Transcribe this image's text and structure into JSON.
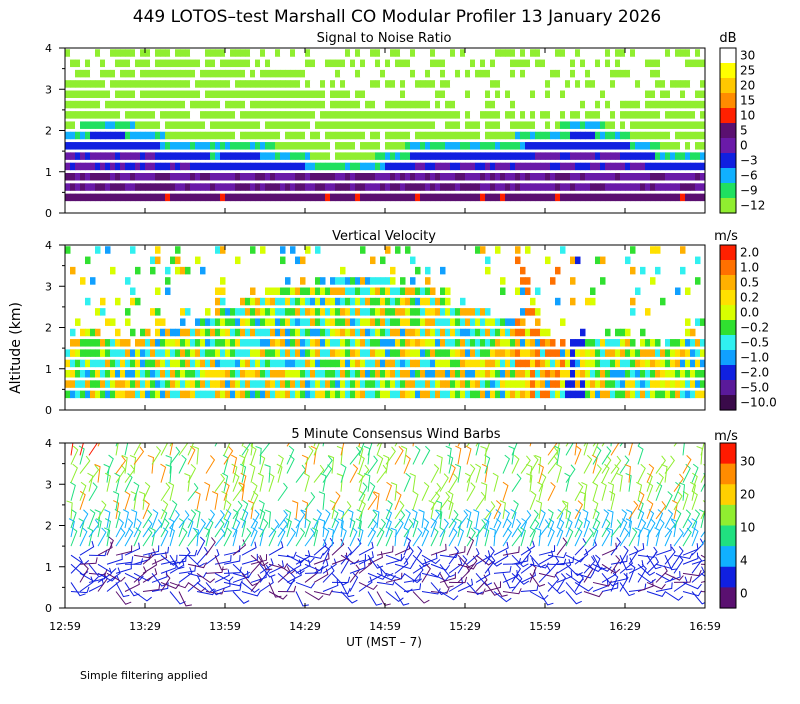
{
  "chart_data": {
    "type": "heatmap",
    "title": "449 LOTOS–test Marshall CO Modular Profiler 13 January 2026",
    "ylabel": "Altitude (km)",
    "xlabel": "UT  (MST – 7)",
    "footer": "Simple filtering applied",
    "x_ticks": [
      "12:59",
      "13:29",
      "13:59",
      "14:29",
      "14:59",
      "15:29",
      "15:59",
      "16:29",
      "16:59"
    ],
    "ylim": [
      0,
      4
    ],
    "y_ticks": [
      "0",
      "1",
      "2",
      "3",
      "4"
    ],
    "panels": [
      {
        "id": "snr",
        "title": "Signal to Noise Ratio",
        "unit": "dB",
        "levels": [
          "30",
          "25",
          "20",
          "15",
          "10",
          "5",
          "0",
          "−3",
          "−6",
          "−9",
          "−12"
        ],
        "colors": [
          "#ffffff",
          "#ffff00",
          "#ffc800",
          "#ff8c00",
          "#ff2000",
          "#5a1070",
          "#6a1aa8",
          "#1020e0",
          "#10b0ff",
          "#20e060",
          "#90ee30"
        ]
      },
      {
        "id": "vv",
        "title": "Vertical Velocity",
        "unit": "m/s",
        "levels": [
          "2.0",
          "1.0",
          "0.5",
          "0.2",
          "0.0",
          "−0.2",
          "−0.5",
          "−1.0",
          "−2.0",
          "−5.0",
          "−10.0"
        ],
        "colors": [
          "#ff2000",
          "#ff7000",
          "#ffb000",
          "#ffe000",
          "#d8ff00",
          "#30e030",
          "#30f0f0",
          "#10a0ff",
          "#1020e0",
          "#5a1a9a",
          "#3a0a4a"
        ]
      },
      {
        "id": "wind",
        "title": "5 Minute Consensus Wind Barbs",
        "unit": "m/s",
        "levels": [
          "30",
          "20",
          "10",
          "4",
          "0"
        ],
        "colors": [
          "#ff1a00",
          "#ff8c00",
          "#ffd000",
          "#90ee30",
          "#20e080",
          "#10b0ff",
          "#1020e0",
          "#5a1070"
        ]
      }
    ]
  }
}
